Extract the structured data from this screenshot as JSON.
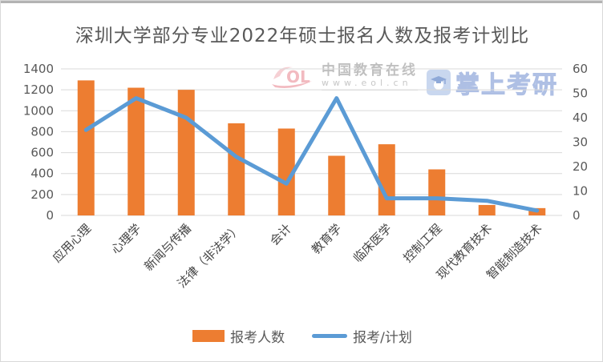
{
  "window": {
    "kind": "chart-screenshot"
  },
  "colors": {
    "bar_orange": "#ED7D31",
    "line_blue": "#5B9BD5",
    "gridline": "#D9D9D9",
    "axis_text": "#595959",
    "title_text": "#595959",
    "watermark_pink": "#e8838d",
    "watermark_blue": "#bccbe9"
  },
  "watermarks": {
    "eol": {
      "logo_letters": "OL",
      "name": "中国教育在线",
      "url": "www.eol.cn"
    },
    "zhangshang": {
      "text": "掌上考研",
      "icon": "graduation-cap"
    }
  },
  "legend": [
    {
      "label": "报考人数",
      "type": "bar"
    },
    {
      "label": "报考/计划",
      "type": "line"
    }
  ],
  "chart_data": {
    "type": "bar+line combo",
    "title": "深圳大学部分专业2022年硕士报名人数及报考计划比",
    "categories": [
      "应用心理",
      "心理学",
      "新闻与传播",
      "法律（非法学）",
      "会计",
      "教育学",
      "临床医学",
      "控制工程",
      "现代教育技术",
      "智能制造技术"
    ],
    "series": [
      {
        "name": "报考人数",
        "type": "bar",
        "axis": "left",
        "color": "#ED7D31",
        "values": [
          1290,
          1220,
          1200,
          880,
          830,
          570,
          680,
          440,
          100,
          70
        ]
      },
      {
        "name": "报考/计划",
        "type": "line",
        "axis": "right",
        "color": "#5B9BD5",
        "values": [
          35,
          48,
          40,
          24,
          13,
          48,
          7,
          7,
          6,
          2
        ]
      }
    ],
    "left_axis": {
      "min": 0,
      "max": 1400,
      "step": 200,
      "ticks": [
        "0",
        "200",
        "400",
        "600",
        "800",
        "1000",
        "1200",
        "1400"
      ]
    },
    "right_axis": {
      "min": 0,
      "max": 60,
      "step": 10,
      "ticks": [
        "0",
        "10",
        "20",
        "30",
        "40",
        "50",
        "60"
      ]
    },
    "grid": true,
    "x_label_rotation": -45,
    "legend_position": "bottom"
  }
}
